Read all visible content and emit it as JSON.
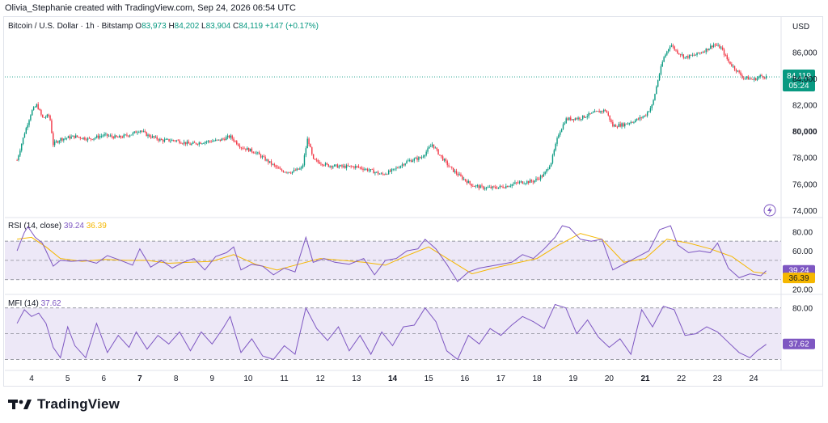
{
  "header": "Olivia_Stephanie created with TradingView.com, Sep 24, 2026 06:54 UTC",
  "legend": {
    "symbol": "Bitcoin / U.S. Dollar · 1h · Bitstamp",
    "open_label": "O",
    "open": "83,973",
    "high_label": "H",
    "high": "84,202",
    "low_label": "L",
    "low": "83,904",
    "close_label": "C",
    "close": "84,119",
    "change": "+147 (+0.17%)"
  },
  "currency": "USD",
  "last_price": {
    "price": "84,119",
    "countdown": "05:24"
  },
  "rsi": {
    "title": "RSI (14, close)",
    "value": "39.24",
    "ma_value": "36.39"
  },
  "mfi": {
    "title": "MFI (14)",
    "value": "37.62"
  },
  "footer": {
    "brand": "TradingView"
  },
  "colors": {
    "up": "#089981",
    "down": "#f23645",
    "rsi": "#7e57c2",
    "ma": "#f5b700",
    "band": "#ede8f7"
  },
  "chart_data": [
    {
      "type": "candlestick",
      "title": "Bitcoin / U.S. Dollar · 1h · Bitstamp",
      "y_unit": "USD",
      "ylim": [
        73500,
        87500
      ],
      "y_ticks": [
        "86,000",
        "84,000",
        "82,000",
        "80,000",
        "78,000",
        "76,000",
        "74,000"
      ],
      "y_tick_values": [
        86000,
        84000,
        82000,
        80000,
        78000,
        76000,
        74000
      ],
      "x_ticks": [
        "4",
        "5",
        "6",
        "7",
        "8",
        "9",
        "10",
        "11",
        "12",
        "13",
        "14",
        "15",
        "16",
        "17",
        "18",
        "19",
        "20",
        "21",
        "22",
        "23",
        "24"
      ],
      "x_ticks_bold": [
        "7",
        "14",
        "21"
      ],
      "close_path": [
        [
          3.6,
          77800
        ],
        [
          3.8,
          79800
        ],
        [
          4.0,
          81500
        ],
        [
          4.15,
          82000
        ],
        [
          4.3,
          81000
        ],
        [
          4.5,
          81200
        ],
        [
          4.6,
          79000
        ],
        [
          4.8,
          79400
        ],
        [
          5.2,
          79600
        ],
        [
          5.6,
          79400
        ],
        [
          6.0,
          79700
        ],
        [
          6.4,
          79500
        ],
        [
          6.8,
          79800
        ],
        [
          7.0,
          80100
        ],
        [
          7.2,
          79700
        ],
        [
          7.6,
          79300
        ],
        [
          8.0,
          79300
        ],
        [
          8.4,
          79000
        ],
        [
          8.8,
          79200
        ],
        [
          9.2,
          79300
        ],
        [
          9.5,
          79600
        ],
        [
          9.8,
          78800
        ],
        [
          10.2,
          78400
        ],
        [
          10.6,
          77600
        ],
        [
          10.9,
          77000
        ],
        [
          11.2,
          76900
        ],
        [
          11.5,
          77200
        ],
        [
          11.65,
          79500
        ],
        [
          11.8,
          77800
        ],
        [
          12.2,
          77400
        ],
        [
          12.6,
          77300
        ],
        [
          13.0,
          77300
        ],
        [
          13.4,
          77000
        ],
        [
          13.7,
          76700
        ],
        [
          14.0,
          77000
        ],
        [
          14.4,
          77700
        ],
        [
          14.8,
          78000
        ],
        [
          15.1,
          79000
        ],
        [
          15.3,
          78200
        ],
        [
          15.6,
          77200
        ],
        [
          15.9,
          76500
        ],
        [
          16.2,
          75900
        ],
        [
          16.5,
          75700
        ],
        [
          16.8,
          75700
        ],
        [
          17.1,
          75800
        ],
        [
          17.5,
          76100
        ],
        [
          17.9,
          76200
        ],
        [
          18.2,
          76700
        ],
        [
          18.4,
          77700
        ],
        [
          18.6,
          79800
        ],
        [
          18.8,
          80900
        ],
        [
          19.2,
          81000
        ],
        [
          19.6,
          81400
        ],
        [
          19.9,
          81600
        ],
        [
          20.1,
          80400
        ],
        [
          20.4,
          80500
        ],
        [
          20.8,
          80900
        ],
        [
          21.0,
          81200
        ],
        [
          21.2,
          82000
        ],
        [
          21.35,
          83900
        ],
        [
          21.5,
          85500
        ],
        [
          21.7,
          86600
        ],
        [
          21.85,
          86100
        ],
        [
          22.1,
          85600
        ],
        [
          22.4,
          85800
        ],
        [
          22.7,
          86200
        ],
        [
          22.9,
          86600
        ],
        [
          23.1,
          86300
        ],
        [
          23.3,
          85300
        ],
        [
          23.5,
          84700
        ],
        [
          23.7,
          84100
        ],
        [
          24.0,
          83900
        ],
        [
          24.2,
          84200
        ],
        [
          24.35,
          84119
        ]
      ],
      "last_value": 84119
    },
    {
      "type": "line",
      "title": "RSI (14, close)",
      "ylim": [
        18,
        92
      ],
      "y_ticks": [
        "80.00",
        "60.00",
        "20.00"
      ],
      "y_tick_values": [
        80,
        60,
        20
      ],
      "bands": [
        30,
        70
      ],
      "series": [
        {
          "name": "RSI (14, close)",
          "points": [
            [
              3.6,
              60
            ],
            [
              3.8,
              79
            ],
            [
              3.9,
              85
            ],
            [
              4.1,
              74
            ],
            [
              4.3,
              68
            ],
            [
              4.6,
              44
            ],
            [
              4.8,
              50
            ],
            [
              5.1,
              49
            ],
            [
              5.5,
              50
            ],
            [
              5.8,
              47
            ],
            [
              6.1,
              55
            ],
            [
              6.4,
              51
            ],
            [
              6.8,
              45
            ],
            [
              7.0,
              62
            ],
            [
              7.3,
              43
            ],
            [
              7.6,
              50
            ],
            [
              7.9,
              42
            ],
            [
              8.2,
              48
            ],
            [
              8.5,
              52
            ],
            [
              8.8,
              40
            ],
            [
              9.1,
              54
            ],
            [
              9.4,
              58
            ],
            [
              9.6,
              64
            ],
            [
              9.8,
              40
            ],
            [
              10.1,
              46
            ],
            [
              10.4,
              44
            ],
            [
              10.7,
              35
            ],
            [
              11.0,
              42
            ],
            [
              11.3,
              38
            ],
            [
              11.6,
              74
            ],
            [
              11.8,
              48
            ],
            [
              12.1,
              52
            ],
            [
              12.4,
              48
            ],
            [
              12.8,
              46
            ],
            [
              13.2,
              52
            ],
            [
              13.5,
              35
            ],
            [
              13.8,
              50
            ],
            [
              14.1,
              52
            ],
            [
              14.4,
              60
            ],
            [
              14.7,
              62
            ],
            [
              14.9,
              72
            ],
            [
              15.2,
              62
            ],
            [
              15.5,
              46
            ],
            [
              15.8,
              28
            ],
            [
              16.1,
              38
            ],
            [
              16.4,
              42
            ],
            [
              16.7,
              44
            ],
            [
              17.0,
              46
            ],
            [
              17.3,
              48
            ],
            [
              17.6,
              56
            ],
            [
              17.9,
              52
            ],
            [
              18.2,
              62
            ],
            [
              18.5,
              74
            ],
            [
              18.7,
              86
            ],
            [
              18.9,
              84
            ],
            [
              19.2,
              72
            ],
            [
              19.5,
              70
            ],
            [
              19.8,
              72
            ],
            [
              20.1,
              40
            ],
            [
              20.4,
              46
            ],
            [
              20.8,
              54
            ],
            [
              21.1,
              60
            ],
            [
              21.4,
              82
            ],
            [
              21.7,
              86
            ],
            [
              21.9,
              66
            ],
            [
              22.2,
              58
            ],
            [
              22.5,
              60
            ],
            [
              22.8,
              58
            ],
            [
              23.0,
              68
            ],
            [
              23.3,
              42
            ],
            [
              23.6,
              32
            ],
            [
              23.9,
              36
            ],
            [
              24.2,
              34
            ],
            [
              24.35,
              39.24
            ]
          ]
        },
        {
          "name": "RSI-based MA",
          "points": [
            [
              3.6,
              72
            ],
            [
              4.0,
              74
            ],
            [
              4.4,
              64
            ],
            [
              4.8,
              52
            ],
            [
              5.4,
              49
            ],
            [
              6.0,
              51
            ],
            [
              6.6,
              50
            ],
            [
              7.2,
              50
            ],
            [
              7.8,
              47
            ],
            [
              8.4,
              48
            ],
            [
              9.0,
              49
            ],
            [
              9.6,
              56
            ],
            [
              10.2,
              46
            ],
            [
              10.8,
              40
            ],
            [
              11.4,
              46
            ],
            [
              12.0,
              52
            ],
            [
              12.6,
              50
            ],
            [
              13.2,
              48
            ],
            [
              13.8,
              45
            ],
            [
              14.4,
              55
            ],
            [
              15.0,
              64
            ],
            [
              15.6,
              50
            ],
            [
              16.2,
              36
            ],
            [
              16.8,
              42
            ],
            [
              17.4,
              47
            ],
            [
              18.0,
              52
            ],
            [
              18.6,
              66
            ],
            [
              19.2,
              78
            ],
            [
              19.8,
              72
            ],
            [
              20.4,
              48
            ],
            [
              21.0,
              52
            ],
            [
              21.6,
              72
            ],
            [
              22.2,
              68
            ],
            [
              22.8,
              62
            ],
            [
              23.4,
              54
            ],
            [
              24.0,
              38
            ],
            [
              24.35,
              36.39
            ]
          ]
        }
      ]
    },
    {
      "type": "line",
      "title": "MFI (14)",
      "ylim": [
        10,
        92
      ],
      "y_ticks": [
        "80.00"
      ],
      "y_tick_values": [
        80
      ],
      "bands": [
        20,
        80
      ],
      "series": [
        {
          "name": "MFI (14)",
          "points": [
            [
              3.6,
              62
            ],
            [
              3.8,
              78
            ],
            [
              4.0,
              70
            ],
            [
              4.2,
              74
            ],
            [
              4.4,
              62
            ],
            [
              4.6,
              34
            ],
            [
              4.8,
              22
            ],
            [
              5.0,
              58
            ],
            [
              5.2,
              36
            ],
            [
              5.5,
              22
            ],
            [
              5.8,
              62
            ],
            [
              6.1,
              28
            ],
            [
              6.4,
              48
            ],
            [
              6.7,
              34
            ],
            [
              6.9,
              52
            ],
            [
              7.2,
              32
            ],
            [
              7.5,
              48
            ],
            [
              7.8,
              38
            ],
            [
              8.1,
              52
            ],
            [
              8.4,
              30
            ],
            [
              8.7,
              52
            ],
            [
              9.0,
              38
            ],
            [
              9.3,
              56
            ],
            [
              9.5,
              70
            ],
            [
              9.8,
              28
            ],
            [
              10.1,
              44
            ],
            [
              10.4,
              24
            ],
            [
              10.7,
              20
            ],
            [
              11.0,
              36
            ],
            [
              11.3,
              26
            ],
            [
              11.6,
              80
            ],
            [
              11.9,
              56
            ],
            [
              12.2,
              42
            ],
            [
              12.5,
              58
            ],
            [
              12.8,
              30
            ],
            [
              13.1,
              48
            ],
            [
              13.4,
              26
            ],
            [
              13.7,
              52
            ],
            [
              14.0,
              36
            ],
            [
              14.3,
              58
            ],
            [
              14.6,
              60
            ],
            [
              14.9,
              80
            ],
            [
              15.2,
              64
            ],
            [
              15.5,
              30
            ],
            [
              15.8,
              20
            ],
            [
              16.1,
              48
            ],
            [
              16.4,
              38
            ],
            [
              16.7,
              56
            ],
            [
              17.0,
              48
            ],
            [
              17.3,
              60
            ],
            [
              17.6,
              70
            ],
            [
              17.9,
              64
            ],
            [
              18.2,
              56
            ],
            [
              18.5,
              84
            ],
            [
              18.8,
              80
            ],
            [
              19.1,
              50
            ],
            [
              19.4,
              66
            ],
            [
              19.7,
              46
            ],
            [
              20.0,
              34
            ],
            [
              20.3,
              44
            ],
            [
              20.6,
              26
            ],
            [
              20.9,
              78
            ],
            [
              21.2,
              58
            ],
            [
              21.5,
              82
            ],
            [
              21.8,
              78
            ],
            [
              22.1,
              48
            ],
            [
              22.4,
              50
            ],
            [
              22.7,
              58
            ],
            [
              23.0,
              52
            ],
            [
              23.3,
              40
            ],
            [
              23.6,
              28
            ],
            [
              23.9,
              22
            ],
            [
              24.1,
              30
            ],
            [
              24.35,
              37.62
            ]
          ]
        }
      ]
    }
  ]
}
